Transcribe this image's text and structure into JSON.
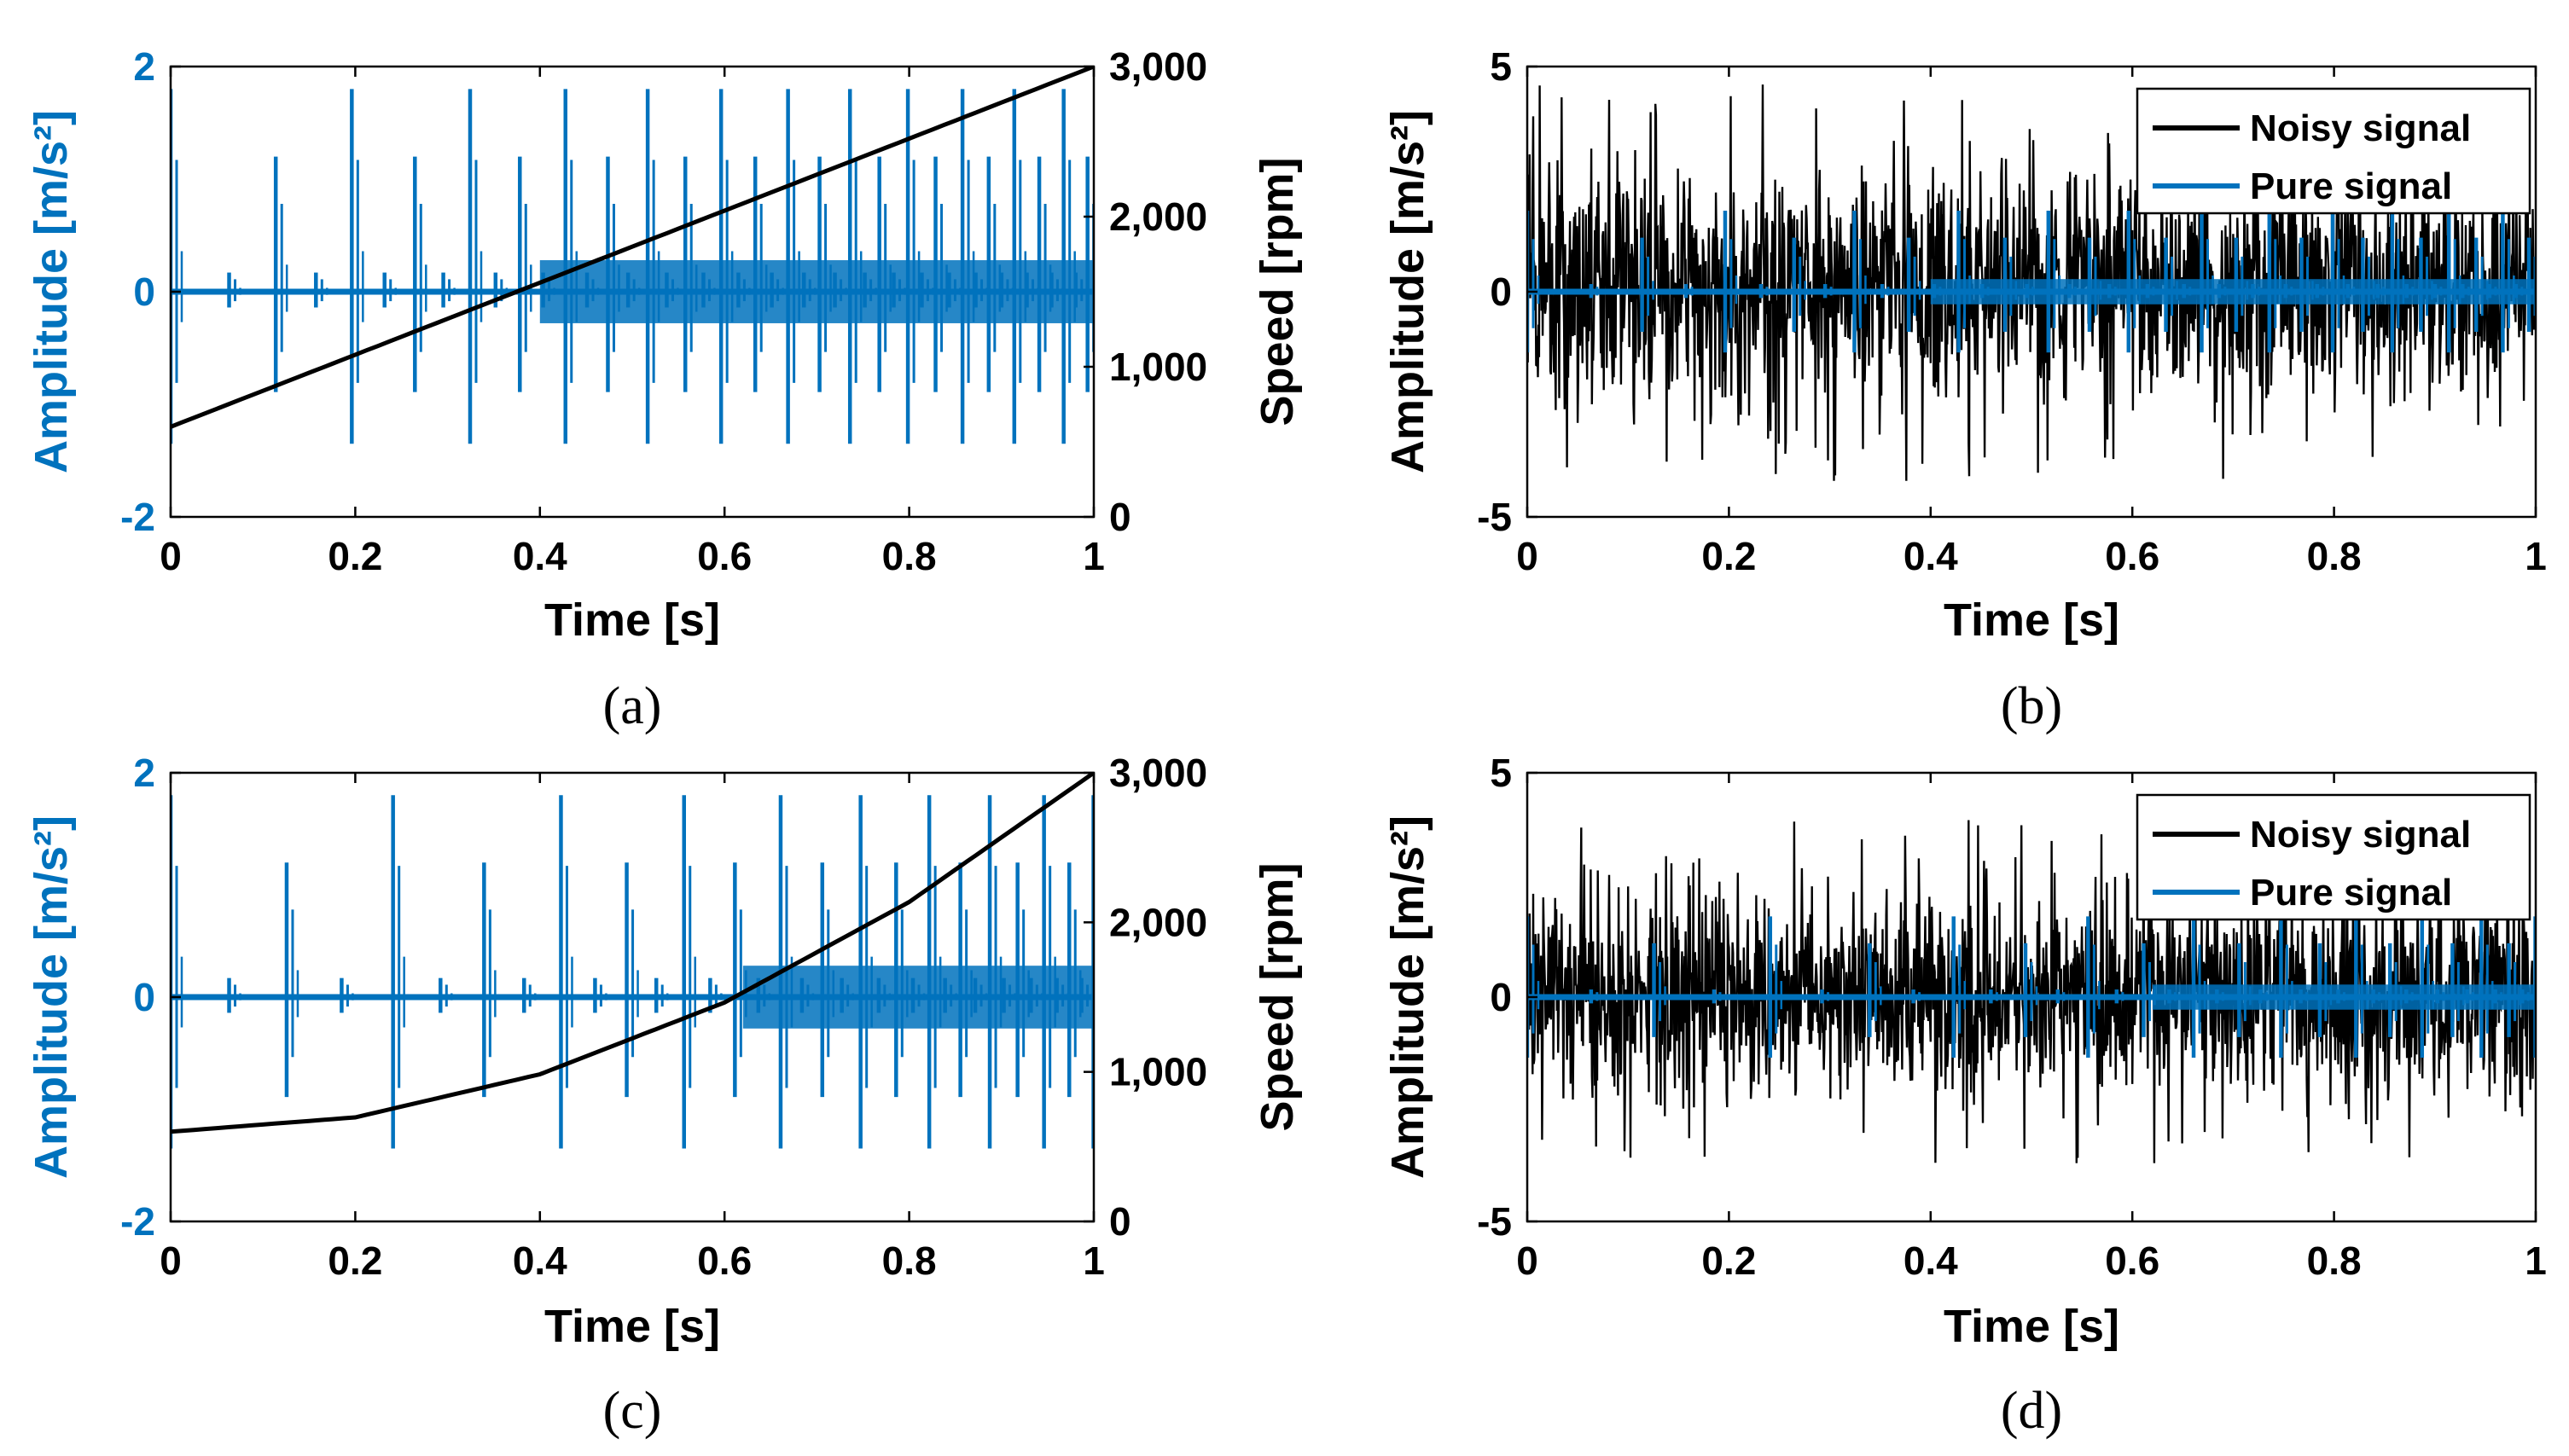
{
  "colors": {
    "blue": "#0072BD",
    "black": "#000000"
  },
  "chart_data": [
    {
      "type": "line",
      "caption": "(a)",
      "xlabel": "Time [s]",
      "ylabel_left": "Amplitude [m/s²]",
      "ylabel_right": "Speed [rpm]",
      "xlim": [
        0,
        1
      ],
      "ylim_left": [
        -2,
        2
      ],
      "ylim_right": [
        0,
        3000
      ],
      "x_ticks": [
        "0",
        "0.2",
        "0.4",
        "0.6",
        "0.8",
        "1"
      ],
      "y_ticks_left": [
        "-2",
        "0",
        "2"
      ],
      "y_ticks_right": [
        "0",
        "1,000",
        "2,000",
        "3,000"
      ],
      "series": [
        {
          "name": "Pure signal",
          "axis": "left",
          "kind": "impulse-train",
          "speed_profile": "linear",
          "peak_pos": 1.8,
          "peak_neg": -1.35,
          "secondary": 1.2
        },
        {
          "name": "Speed",
          "axis": "right",
          "kind": "speed",
          "x": [
            0,
            0.25,
            0.5,
            0.75,
            1
          ],
          "y": [
            600,
            1200,
            1800,
            2400,
            3000
          ]
        }
      ]
    },
    {
      "type": "line",
      "caption": "(b)",
      "xlabel": "Time [s]",
      "ylabel_left": "Amplitude [m/s²]",
      "xlim": [
        0,
        1
      ],
      "ylim_left": [
        -5,
        5
      ],
      "x_ticks": [
        "0",
        "0.2",
        "0.4",
        "0.6",
        "0.8",
        "1"
      ],
      "y_ticks_left": [
        "-5",
        "0",
        "5"
      ],
      "legend": [
        "Noisy signal",
        "Pure signal"
      ],
      "series": [
        {
          "name": "Noisy signal",
          "axis": "left",
          "kind": "noise",
          "band": [
            -2.3,
            2.5
          ],
          "extreme": [
            -4.2,
            4.6
          ]
        },
        {
          "name": "Pure signal",
          "axis": "left",
          "kind": "impulse-train",
          "speed_profile": "linear",
          "peak_pos": 1.8,
          "peak_neg": -1.35,
          "secondary": 1.2
        }
      ]
    },
    {
      "type": "line",
      "caption": "(c)",
      "xlabel": "Time [s]",
      "ylabel_left": "Amplitude [m/s²]",
      "ylabel_right": "Speed [rpm]",
      "xlim": [
        0,
        1
      ],
      "ylim_left": [
        -2,
        2
      ],
      "ylim_right": [
        0,
        3000
      ],
      "x_ticks": [
        "0",
        "0.2",
        "0.4",
        "0.6",
        "0.8",
        "1"
      ],
      "y_ticks_left": [
        "-2",
        "0",
        "2"
      ],
      "y_ticks_right": [
        "0",
        "1,000",
        "2,000",
        "3,000"
      ],
      "series": [
        {
          "name": "Pure signal",
          "axis": "left",
          "kind": "impulse-train",
          "speed_profile": "quadratic",
          "peak_pos": 1.8,
          "peak_neg": -1.35,
          "secondary": 1.2
        },
        {
          "name": "Speed",
          "axis": "right",
          "kind": "speed",
          "x": [
            0,
            0.2,
            0.4,
            0.6,
            0.8,
            1
          ],
          "y": [
            600,
            696,
            984,
            1464,
            2136,
            3000
          ]
        }
      ]
    },
    {
      "type": "line",
      "caption": "(d)",
      "xlabel": "Time [s]",
      "ylabel_left": "Amplitude [m/s²]",
      "xlim": [
        0,
        1
      ],
      "ylim_left": [
        -5,
        5
      ],
      "x_ticks": [
        "0",
        "0.2",
        "0.4",
        "0.6",
        "0.8",
        "1"
      ],
      "y_ticks_left": [
        "-5",
        "0",
        "5"
      ],
      "legend": [
        "Noisy signal",
        "Pure signal"
      ],
      "series": [
        {
          "name": "Noisy signal",
          "axis": "left",
          "kind": "noise",
          "band": [
            -2.1,
            2.2
          ],
          "extreme": [
            -3.7,
            4.0
          ]
        },
        {
          "name": "Pure signal",
          "axis": "left",
          "kind": "impulse-train",
          "speed_profile": "quadratic",
          "peak_pos": 1.8,
          "peak_neg": -1.35,
          "secondary": 1.2
        }
      ]
    }
  ]
}
